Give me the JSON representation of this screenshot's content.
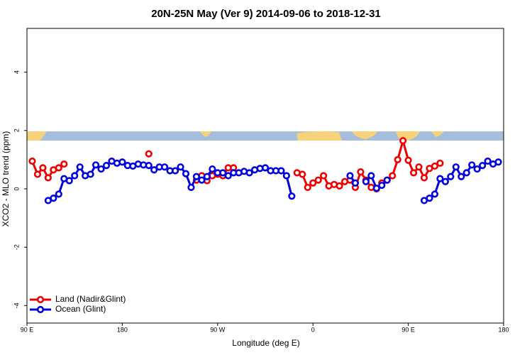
{
  "chart_data": {
    "type": "line",
    "title": "20N-25N May (Ver 9)   2014-09-06 to 2018-12-31",
    "x_label": "Longitude (deg E)",
    "y_label": "XCO2 - MLO trend (ppm)",
    "x": [
      95,
      100,
      105,
      110,
      115,
      120,
      125,
      130,
      135,
      140,
      145,
      150,
      155,
      160,
      165,
      170,
      175,
      180,
      185,
      190,
      195,
      200,
      205,
      210,
      215,
      220,
      225,
      230,
      235,
      240,
      245,
      250,
      255,
      260,
      265,
      270,
      275,
      280,
      285,
      290,
      295,
      300,
      305,
      310,
      315,
      320,
      325,
      330,
      335,
      340,
      345,
      350,
      355,
      360,
      365,
      370,
      375,
      380,
      385,
      390,
      395,
      400,
      405,
      410,
      415,
      420,
      425,
      430,
      435,
      440,
      445,
      450,
      455,
      460,
      465,
      470,
      475,
      480,
      485,
      490,
      495,
      500,
      505,
      510,
      515,
      520,
      525,
      530,
      535
    ],
    "series": [
      {
        "name": "Land (Nadir&Glint)",
        "color": "#ee0000",
        "values": [
          0.95,
          0.5,
          0.72,
          0.38,
          0.65,
          0.72,
          0.85,
          null,
          null,
          null,
          null,
          null,
          null,
          null,
          null,
          null,
          null,
          null,
          null,
          null,
          null,
          null,
          1.2,
          null,
          null,
          null,
          null,
          null,
          null,
          null,
          null,
          0.3,
          0.45,
          0.28,
          0.45,
          0.5,
          0.45,
          0.72,
          0.72,
          null,
          null,
          null,
          null,
          null,
          null,
          null,
          null,
          null,
          null,
          null,
          0.55,
          0.5,
          0.05,
          0.2,
          0.3,
          0.45,
          0.1,
          0.15,
          0.1,
          0.25,
          0.3,
          0.05,
          0.58,
          0.3,
          0.05,
          0.0,
          0.2,
          0.3,
          0.45,
          1.0,
          1.65,
          0.98,
          0.55,
          0.75,
          0.38,
          0.7,
          0.78,
          0.88,
          null,
          null,
          null,
          null,
          null,
          null,
          null,
          null,
          null,
          null,
          null
        ]
      },
      {
        "name": "Ocean (Glint)",
        "color": "#0000dd",
        "values": [
          null,
          null,
          null,
          -0.4,
          -0.32,
          -0.18,
          0.35,
          0.28,
          0.45,
          0.75,
          0.45,
          0.5,
          0.82,
          0.68,
          0.8,
          0.95,
          0.88,
          0.92,
          0.8,
          0.78,
          0.85,
          0.82,
          0.8,
          0.65,
          0.75,
          0.75,
          0.62,
          0.62,
          0.75,
          0.52,
          0.05,
          0.42,
          0.3,
          0.42,
          0.68,
          0.55,
          0.55,
          0.45,
          0.55,
          0.55,
          0.6,
          0.55,
          0.65,
          0.7,
          0.72,
          0.62,
          0.62,
          0.62,
          0.45,
          -0.25,
          null,
          null,
          null,
          null,
          null,
          null,
          null,
          null,
          null,
          null,
          0.45,
          0.2,
          null,
          0.25,
          0.45,
          0.02,
          0.12,
          0.3,
          null,
          null,
          null,
          null,
          null,
          null,
          -0.4,
          -0.32,
          -0.18,
          0.35,
          0.25,
          0.42,
          0.75,
          0.42,
          0.55,
          0.82,
          0.68,
          0.8,
          0.95,
          0.85,
          0.92
        ]
      }
    ],
    "xlim": [
      90,
      540
    ],
    "xticks": [
      {
        "value": 90,
        "label": "90 E"
      },
      180,
      {
        "value": 270,
        "label": "90 W"
      },
      {
        "value": 360,
        "label": "0"
      },
      {
        "value": 450,
        "label": "90 E"
      },
      {
        "value": 540,
        "label": "180"
      }
    ],
    "ylim": [
      -4.6,
      5.5
    ],
    "yticks": [
      -4,
      -2,
      0,
      2,
      4
    ],
    "legend": "bottom-left"
  }
}
